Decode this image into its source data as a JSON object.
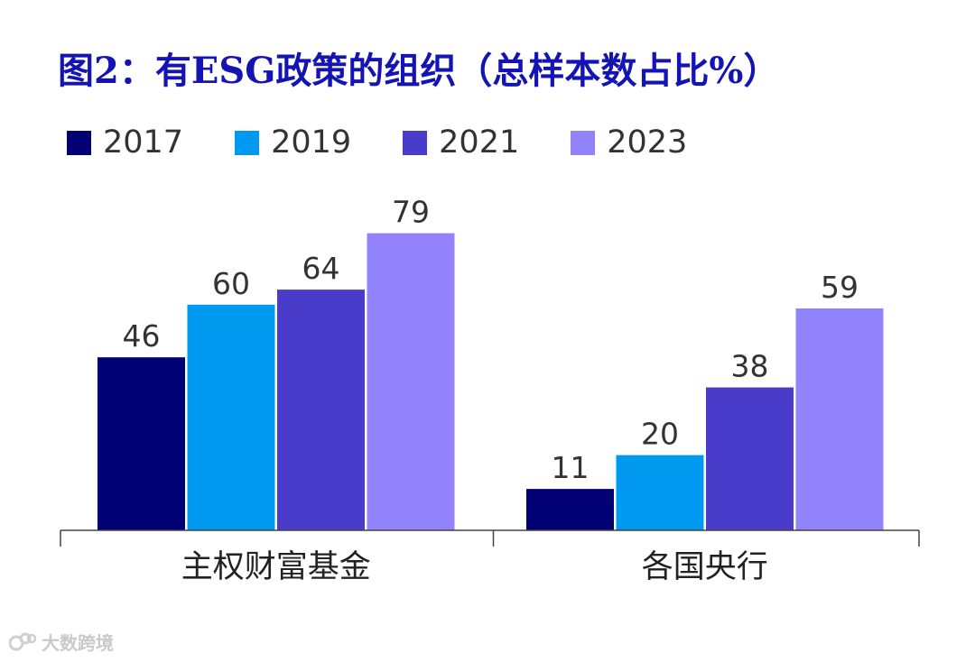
{
  "chart_data": {
    "type": "bar",
    "title": "图2：有ESG政策的组织（总样本数占比%）",
    "categories": [
      "主权财富基金",
      "各国央行"
    ],
    "series": [
      {
        "name": "2017",
        "color": "#000074",
        "values": [
          46,
          11
        ]
      },
      {
        "name": "2019",
        "color": "#0099f0",
        "values": [
          60,
          20
        ]
      },
      {
        "name": "2021",
        "color": "#4a3ccb",
        "values": [
          64,
          38
        ]
      },
      {
        "name": "2023",
        "color": "#9283fb",
        "values": [
          79,
          59
        ]
      }
    ],
    "xlabel": "",
    "ylabel": "",
    "ylim": [
      0,
      100
    ],
    "grid": false,
    "legend": "top-left"
  },
  "watermark": {
    "text": "大数跨境",
    "icon": "logo-icon"
  }
}
